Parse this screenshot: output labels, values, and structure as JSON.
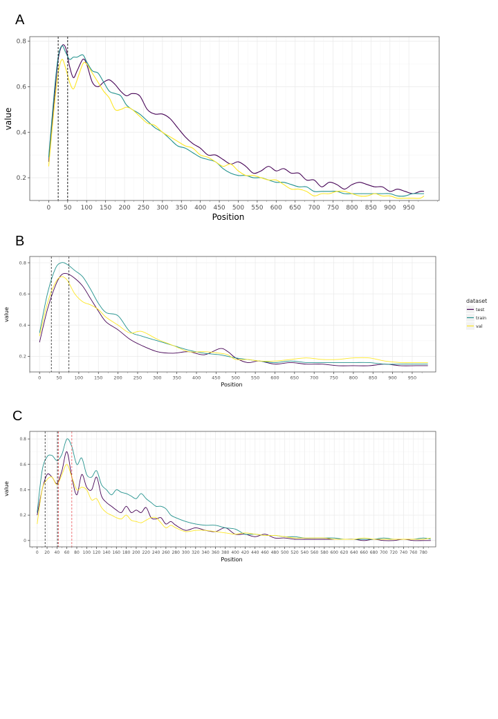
{
  "figure": {
    "panels": [
      "A",
      "B",
      "C"
    ]
  },
  "colors": {
    "test": "#440154",
    "train": "#21918c",
    "val": "#fde725",
    "vline": "#000000",
    "vline_red": "#e8383d"
  },
  "legend": {
    "title": "dataset",
    "entries": [
      "test",
      "train",
      "val"
    ]
  },
  "chart_data": [
    {
      "panel": "A",
      "type": "line",
      "xlabel": "Position",
      "ylabel": "value",
      "xlim": [
        -50,
        1030
      ],
      "ylim": [
        0.1,
        0.82
      ],
      "xticks": [
        0,
        50,
        100,
        150,
        200,
        250,
        300,
        350,
        400,
        450,
        500,
        550,
        600,
        650,
        700,
        750,
        800,
        850,
        900,
        950
      ],
      "yticks": [
        0.2,
        0.4,
        0.6,
        0.8
      ],
      "grid": true,
      "legend": false,
      "vlines": [
        {
          "x": 25,
          "color": "#000000"
        },
        {
          "x": 50,
          "color": "#000000"
        }
      ],
      "x": [
        0,
        15,
        25,
        35,
        45,
        55,
        65,
        75,
        90,
        100,
        115,
        130,
        145,
        160,
        175,
        190,
        205,
        220,
        240,
        260,
        280,
        300,
        320,
        340,
        360,
        380,
        400,
        420,
        440,
        460,
        480,
        500,
        520,
        540,
        560,
        580,
        600,
        620,
        640,
        660,
        680,
        700,
        720,
        740,
        760,
        780,
        800,
        820,
        840,
        860,
        880,
        900,
        920,
        940,
        960,
        980,
        990
      ],
      "series": [
        {
          "name": "test",
          "values": [
            0.27,
            0.55,
            0.72,
            0.78,
            0.77,
            0.69,
            0.64,
            0.67,
            0.72,
            0.7,
            0.62,
            0.6,
            0.62,
            0.63,
            0.61,
            0.58,
            0.56,
            0.57,
            0.56,
            0.5,
            0.48,
            0.48,
            0.46,
            0.42,
            0.38,
            0.35,
            0.33,
            0.3,
            0.3,
            0.28,
            0.26,
            0.27,
            0.25,
            0.22,
            0.23,
            0.25,
            0.23,
            0.24,
            0.22,
            0.22,
            0.19,
            0.19,
            0.16,
            0.18,
            0.17,
            0.15,
            0.17,
            0.18,
            0.17,
            0.16,
            0.16,
            0.14,
            0.15,
            0.14,
            0.13,
            0.14,
            0.14
          ]
        },
        {
          "name": "train",
          "values": [
            0.29,
            0.58,
            0.73,
            0.78,
            0.75,
            0.72,
            0.73,
            0.73,
            0.74,
            0.71,
            0.67,
            0.66,
            0.62,
            0.58,
            0.57,
            0.56,
            0.52,
            0.5,
            0.48,
            0.45,
            0.42,
            0.4,
            0.37,
            0.34,
            0.33,
            0.31,
            0.29,
            0.28,
            0.27,
            0.24,
            0.22,
            0.21,
            0.21,
            0.2,
            0.2,
            0.19,
            0.18,
            0.18,
            0.17,
            0.16,
            0.16,
            0.14,
            0.14,
            0.14,
            0.14,
            0.13,
            0.13,
            0.13,
            0.13,
            0.13,
            0.13,
            0.13,
            0.12,
            0.12,
            0.13,
            0.13,
            0.13
          ]
        },
        {
          "name": "val",
          "values": [
            0.25,
            0.52,
            0.66,
            0.72,
            0.68,
            0.62,
            0.59,
            0.63,
            0.7,
            0.7,
            0.66,
            0.62,
            0.58,
            0.55,
            0.5,
            0.5,
            0.51,
            0.5,
            0.47,
            0.44,
            0.43,
            0.4,
            0.38,
            0.36,
            0.34,
            0.33,
            0.3,
            0.29,
            0.27,
            0.25,
            0.26,
            0.23,
            0.21,
            0.21,
            0.2,
            0.19,
            0.19,
            0.17,
            0.15,
            0.15,
            0.14,
            0.12,
            0.13,
            0.13,
            0.14,
            0.14,
            0.13,
            0.12,
            0.12,
            0.13,
            0.12,
            0.12,
            0.11,
            0.11,
            0.11,
            0.11,
            0.12
          ]
        }
      ]
    },
    {
      "panel": "B",
      "type": "line",
      "xlabel": "Position",
      "ylabel": "value",
      "xlim": [
        -25,
        1010
      ],
      "ylim": [
        0.1,
        0.84
      ],
      "xticks": [
        0,
        50,
        100,
        150,
        200,
        250,
        300,
        350,
        400,
        450,
        500,
        550,
        600,
        650,
        700,
        750,
        800,
        850,
        900,
        950
      ],
      "yticks": [
        0.2,
        0.4,
        0.6,
        0.8
      ],
      "grid": true,
      "legend": true,
      "vlines": [
        {
          "x": 30,
          "color": "#000000"
        },
        {
          "x": 75,
          "color": "#000000"
        }
      ],
      "x": [
        0,
        20,
        40,
        55,
        70,
        90,
        110,
        130,
        150,
        170,
        200,
        230,
        260,
        300,
        340,
        380,
        420,
        460,
        480,
        500,
        530,
        560,
        600,
        640,
        680,
        720,
        760,
        800,
        840,
        880,
        920,
        960,
        990
      ],
      "series": [
        {
          "name": "test",
          "values": [
            0.29,
            0.5,
            0.65,
            0.72,
            0.73,
            0.7,
            0.65,
            0.57,
            0.49,
            0.42,
            0.37,
            0.31,
            0.27,
            0.23,
            0.22,
            0.23,
            0.21,
            0.25,
            0.23,
            0.19,
            0.16,
            0.17,
            0.15,
            0.16,
            0.15,
            0.15,
            0.14,
            0.14,
            0.14,
            0.15,
            0.14,
            0.14,
            0.14
          ]
        },
        {
          "name": "train",
          "values": [
            0.35,
            0.6,
            0.76,
            0.8,
            0.79,
            0.75,
            0.71,
            0.63,
            0.54,
            0.48,
            0.46,
            0.36,
            0.33,
            0.3,
            0.27,
            0.24,
            0.22,
            0.21,
            0.2,
            0.19,
            0.18,
            0.17,
            0.16,
            0.17,
            0.16,
            0.16,
            0.16,
            0.16,
            0.16,
            0.15,
            0.15,
            0.15,
            0.15
          ]
        },
        {
          "name": "val",
          "values": [
            0.33,
            0.54,
            0.67,
            0.71,
            0.69,
            0.6,
            0.55,
            0.53,
            0.5,
            0.45,
            0.4,
            0.35,
            0.36,
            0.31,
            0.27,
            0.23,
            0.23,
            0.22,
            0.21,
            0.18,
            0.18,
            0.17,
            0.17,
            0.18,
            0.19,
            0.18,
            0.18,
            0.19,
            0.19,
            0.17,
            0.16,
            0.16,
            0.16
          ]
        }
      ]
    },
    {
      "panel": "C",
      "type": "line",
      "xlabel": "Position",
      "ylabel": "value",
      "xlim": [
        -15,
        805
      ],
      "ylim": [
        -0.05,
        0.86
      ],
      "xticks": [
        0,
        20,
        40,
        60,
        80,
        100,
        120,
        140,
        160,
        180,
        200,
        220,
        240,
        260,
        280,
        300,
        320,
        340,
        360,
        380,
        400,
        420,
        440,
        460,
        480,
        500,
        520,
        540,
        560,
        580,
        600,
        620,
        640,
        660,
        680,
        700,
        720,
        740,
        760,
        780
      ],
      "yticks": [
        0,
        0.2,
        0.4,
        0.6,
        0.8
      ],
      "grid": true,
      "legend": false,
      "vlines": [
        {
          "x": 16,
          "color": "#000000"
        },
        {
          "x": 41,
          "color": "#000000"
        },
        {
          "x": 43,
          "color": "#e8383d"
        },
        {
          "x": 70,
          "color": "#e8383d"
        }
      ],
      "x": [
        0,
        10,
        20,
        30,
        40,
        50,
        60,
        70,
        80,
        90,
        100,
        110,
        120,
        130,
        140,
        150,
        160,
        170,
        180,
        190,
        200,
        210,
        220,
        230,
        240,
        250,
        260,
        270,
        280,
        300,
        320,
        340,
        360,
        380,
        400,
        420,
        440,
        460,
        480,
        500,
        520,
        540,
        560,
        580,
        600,
        620,
        640,
        660,
        680,
        700,
        720,
        740,
        760,
        780,
        795
      ],
      "series": [
        {
          "name": "test",
          "values": [
            0.2,
            0.4,
            0.52,
            0.5,
            0.45,
            0.55,
            0.7,
            0.5,
            0.36,
            0.52,
            0.42,
            0.4,
            0.5,
            0.35,
            0.3,
            0.27,
            0.24,
            0.22,
            0.27,
            0.22,
            0.24,
            0.22,
            0.26,
            0.18,
            0.17,
            0.18,
            0.13,
            0.15,
            0.12,
            0.08,
            0.1,
            0.08,
            0.07,
            0.1,
            0.05,
            0.05,
            0.03,
            0.05,
            0.02,
            0.02,
            0.01,
            0.01,
            0.01,
            0.01,
            0.01,
            0.01,
            0.01,
            0.0,
            0.01,
            0.0,
            0.0,
            0.01,
            0.0,
            0.0,
            0.0
          ]
        },
        {
          "name": "train",
          "values": [
            0.22,
            0.55,
            0.66,
            0.67,
            0.63,
            0.68,
            0.8,
            0.74,
            0.6,
            0.65,
            0.52,
            0.5,
            0.55,
            0.44,
            0.4,
            0.36,
            0.4,
            0.38,
            0.37,
            0.35,
            0.33,
            0.37,
            0.33,
            0.3,
            0.27,
            0.27,
            0.25,
            0.2,
            0.18,
            0.15,
            0.13,
            0.12,
            0.12,
            0.1,
            0.09,
            0.05,
            0.05,
            0.04,
            0.04,
            0.03,
            0.03,
            0.02,
            0.02,
            0.02,
            0.02,
            0.01,
            0.01,
            0.01,
            0.01,
            0.02,
            0.01,
            0.01,
            0.01,
            0.02,
            0.01
          ]
        },
        {
          "name": "val",
          "values": [
            0.13,
            0.4,
            0.48,
            0.5,
            0.44,
            0.52,
            0.6,
            0.5,
            0.4,
            0.42,
            0.4,
            0.32,
            0.33,
            0.26,
            0.22,
            0.2,
            0.18,
            0.17,
            0.2,
            0.16,
            0.15,
            0.14,
            0.16,
            0.18,
            0.18,
            0.14,
            0.1,
            0.12,
            0.1,
            0.07,
            0.08,
            0.08,
            0.07,
            0.06,
            0.05,
            0.06,
            0.05,
            0.04,
            0.04,
            0.03,
            0.02,
            0.02,
            0.02,
            0.02,
            0.01,
            0.01,
            0.01,
            0.02,
            0.01,
            0.01,
            0.01,
            0.01,
            0.01,
            0.01,
            0.02
          ]
        }
      ]
    }
  ]
}
